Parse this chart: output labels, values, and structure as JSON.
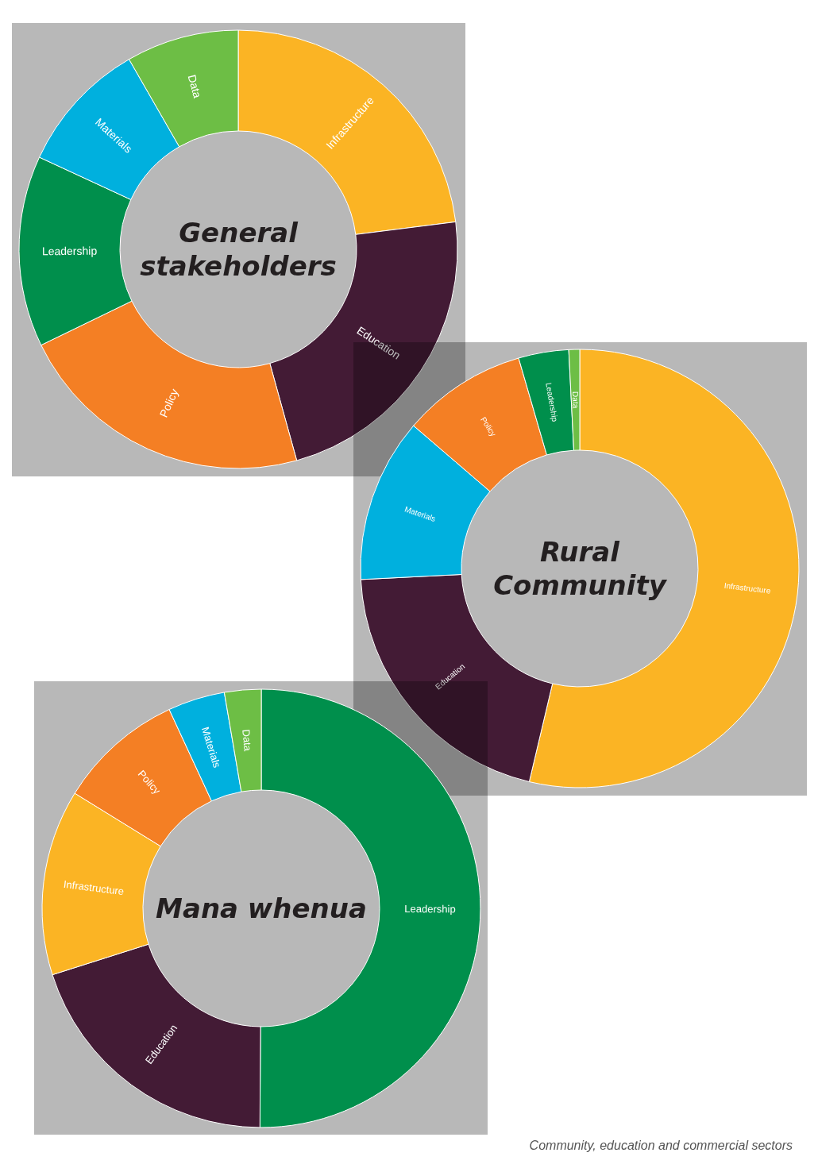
{
  "chart_data": [
    {
      "type": "donut",
      "title": "General stakeholders",
      "categories": [
        "Infrastructure",
        "Education",
        "Policy",
        "Leadership",
        "Materials",
        "Data"
      ],
      "values": [
        23,
        22.7,
        22.1,
        14.1,
        9.8,
        8.3
      ],
      "colors": [
        "#fbb424",
        "#431b35",
        "#f47f24",
        "#008f4c",
        "#00b0de",
        "#6dbe45"
      ]
    },
    {
      "type": "donut",
      "title": "Rural Community",
      "categories": [
        "Infrastructure",
        "Education",
        "Materials",
        "Policy",
        "Leadership",
        "Data"
      ],
      "values": [
        53.7,
        20.5,
        12.1,
        9.2,
        3.7,
        0.8
      ],
      "colors": [
        "#fbb424",
        "#431b35",
        "#00b0de",
        "#f47f24",
        "#008f4c",
        "#6dbe45"
      ]
    },
    {
      "type": "donut",
      "title": "Mana whenua",
      "categories": [
        "Leadership",
        "Education",
        "Infrastructure",
        "Policy",
        "Materials",
        "Data"
      ],
      "values": [
        50.1,
        20,
        13.7,
        9.3,
        4.2,
        2.7
      ],
      "colors": [
        "#008f4c",
        "#431b35",
        "#fbb424",
        "#f47f24",
        "#00b0de",
        "#6dbe45"
      ],
      "annotations": [
        "Community, education and commercial sectors"
      ]
    }
  ]
}
